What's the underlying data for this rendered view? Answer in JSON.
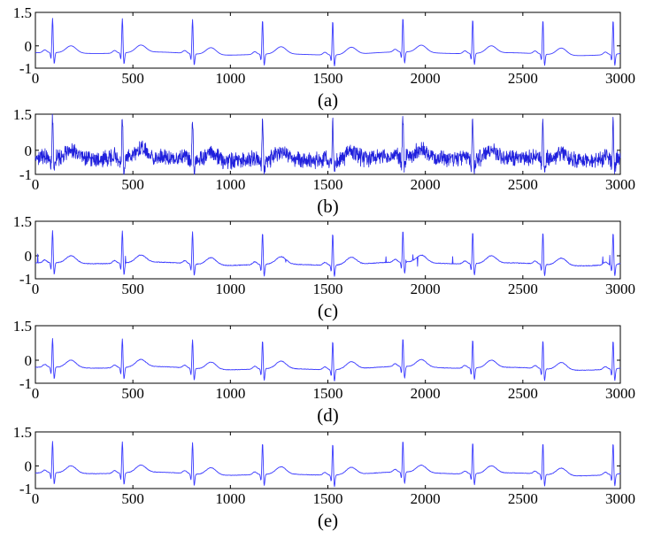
{
  "chart_data": [
    {
      "type": "line",
      "panel_label": "(a)",
      "xlim": [
        0,
        3000
      ],
      "ylim": [
        -1,
        1.5
      ],
      "x_ticks": [
        "0",
        "500",
        "1000",
        "1500",
        "2000",
        "2500",
        "3000"
      ],
      "y_ticks": [
        "1.5",
        "0",
        "-1"
      ],
      "grid": false,
      "color": "#3a3aff",
      "beats_x": [
        88,
        446,
        806,
        1165,
        1525,
        1885,
        2243,
        2603,
        2963
      ],
      "r_peak": 1.25,
      "noise": "none",
      "series": [
        {
          "values_note": ""
        }
      ]
    },
    {
      "type": "line",
      "panel_label": "(b)",
      "xlim": [
        0,
        3000
      ],
      "ylim": [
        -1,
        1.5
      ],
      "x_ticks": [
        "0",
        "500",
        "1000",
        "1500",
        "2000",
        "2500",
        "3000"
      ],
      "y_ticks": [
        "1.5",
        "0",
        "-1"
      ],
      "grid": false,
      "color": "#2020dd",
      "beats_x": [
        88,
        446,
        806,
        1165,
        1525,
        1885,
        2243,
        2603,
        2963
      ],
      "r_peak": 1.25,
      "noise": "heavy"
    },
    {
      "type": "line",
      "panel_label": "(c)",
      "xlim": [
        0,
        3000
      ],
      "ylim": [
        -1,
        1.5
      ],
      "x_ticks": [
        "0",
        "500",
        "1000",
        "1500",
        "2000",
        "2500",
        "3000"
      ],
      "y_ticks": [
        "1.5",
        "0",
        "-1"
      ],
      "grid": false,
      "color": "#3a3aff",
      "beats_x": [
        88,
        446,
        806,
        1165,
        1525,
        1885,
        2243,
        2603,
        2963
      ],
      "r_peak": 1.1,
      "noise": "spikes"
    },
    {
      "type": "line",
      "panel_label": "(d)",
      "xlim": [
        0,
        3000
      ],
      "ylim": [
        -1,
        1.5
      ],
      "x_ticks": [
        "0",
        "500",
        "1000",
        "1500",
        "2000",
        "2500",
        "3000"
      ],
      "y_ticks": [
        "1.5",
        "0",
        "-1"
      ],
      "grid": false,
      "color": "#3a3aff",
      "beats_x": [
        88,
        446,
        806,
        1165,
        1525,
        1885,
        2243,
        2603,
        2963
      ],
      "r_peak": 0.95,
      "noise": "none"
    },
    {
      "type": "line",
      "panel_label": "(e)",
      "xlim": [
        0,
        3000
      ],
      "ylim": [
        -1,
        1.5
      ],
      "x_ticks": [
        "0",
        "500",
        "1000",
        "1500",
        "2000",
        "2500",
        "3000"
      ],
      "y_ticks": [
        "1.5",
        "0",
        "-1"
      ],
      "grid": false,
      "color": "#3a3aff",
      "beats_x": [
        88,
        446,
        806,
        1165,
        1525,
        1885,
        2243,
        2603,
        2963
      ],
      "r_peak": 1.1,
      "noise": "none"
    }
  ]
}
